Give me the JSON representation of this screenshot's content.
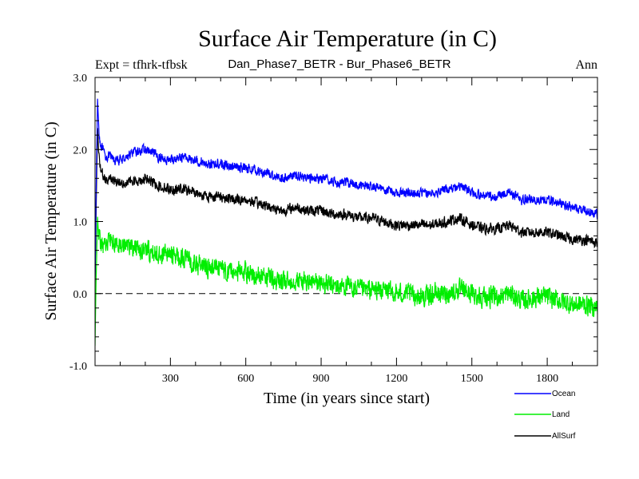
{
  "chart_data": {
    "type": "line",
    "title": "Surface Air Temperature (in C)",
    "subtitle_left": "Expt = tfhrk-tfbsk",
    "subtitle_center": "Dan_Phase7_BETR - Bur_Phase6_BETR",
    "subtitle_right": "Ann",
    "xlabel": "Time (in years since start)",
    "ylabel": "Surface Air Temperature (in C)",
    "xlim": [
      0,
      2000
    ],
    "ylim": [
      -1.0,
      3.0
    ],
    "xticks": [
      300,
      600,
      900,
      1200,
      1500,
      1800
    ],
    "xtick_labels": [
      "300",
      "600",
      "900",
      "1200",
      "1500",
      "1800"
    ],
    "yticks": [
      -1.0,
      0.0,
      1.0,
      2.0,
      3.0
    ],
    "ytick_labels": [
      "-1.0",
      "0.0",
      "1.0",
      "2.0",
      "3.0"
    ],
    "reference_line": 0.0,
    "legend_position": "bottom-right",
    "series": [
      {
        "name": "Ocean",
        "color": "#0000ff",
        "x": [
          0,
          5,
          10,
          15,
          20,
          30,
          40,
          60,
          80,
          100,
          150,
          200,
          250,
          300,
          350,
          400,
          450,
          500,
          550,
          600,
          650,
          700,
          750,
          800,
          850,
          900,
          950,
          1000,
          1050,
          1100,
          1150,
          1200,
          1250,
          1300,
          1350,
          1400,
          1450,
          1500,
          1550,
          1600,
          1650,
          1700,
          1750,
          1800,
          1850,
          1900,
          1950,
          2000
        ],
        "values": [
          0.2,
          1.6,
          2.7,
          2.3,
          2.1,
          2.0,
          1.9,
          1.9,
          1.85,
          1.85,
          1.95,
          2.0,
          1.9,
          1.85,
          1.9,
          1.85,
          1.8,
          1.8,
          1.75,
          1.75,
          1.7,
          1.65,
          1.6,
          1.65,
          1.6,
          1.6,
          1.55,
          1.55,
          1.5,
          1.5,
          1.45,
          1.4,
          1.4,
          1.4,
          1.4,
          1.45,
          1.5,
          1.4,
          1.35,
          1.35,
          1.4,
          1.3,
          1.3,
          1.3,
          1.25,
          1.2,
          1.15,
          1.1
        ]
      },
      {
        "name": "Land",
        "color": "#00ee00",
        "x": [
          0,
          5,
          10,
          15,
          20,
          30,
          40,
          60,
          80,
          100,
          150,
          200,
          250,
          300,
          350,
          400,
          450,
          500,
          550,
          600,
          650,
          700,
          750,
          800,
          850,
          900,
          950,
          1000,
          1050,
          1100,
          1150,
          1200,
          1250,
          1300,
          1350,
          1400,
          1450,
          1500,
          1550,
          1600,
          1650,
          1700,
          1750,
          1800,
          1850,
          1900,
          1950,
          2000
        ],
        "values": [
          -0.7,
          0.3,
          1.1,
          0.8,
          0.7,
          0.65,
          0.7,
          0.75,
          0.7,
          0.7,
          0.65,
          0.6,
          0.55,
          0.55,
          0.5,
          0.4,
          0.35,
          0.35,
          0.3,
          0.3,
          0.25,
          0.2,
          0.15,
          0.2,
          0.15,
          0.15,
          0.1,
          0.1,
          0.05,
          0.05,
          0.05,
          0.0,
          0.0,
          -0.05,
          0.0,
          0.0,
          0.05,
          0.0,
          -0.05,
          -0.05,
          0.0,
          -0.1,
          -0.05,
          -0.05,
          -0.1,
          -0.15,
          -0.15,
          -0.2
        ]
      },
      {
        "name": "AllSurf",
        "color": "#000000",
        "x": [
          0,
          5,
          10,
          15,
          20,
          30,
          40,
          60,
          80,
          100,
          150,
          200,
          250,
          300,
          350,
          400,
          450,
          500,
          550,
          600,
          650,
          700,
          750,
          800,
          850,
          900,
          950,
          1000,
          1050,
          1100,
          1150,
          1200,
          1250,
          1300,
          1350,
          1400,
          1450,
          1500,
          1550,
          1600,
          1650,
          1700,
          1750,
          1800,
          1850,
          1900,
          1950,
          2000
        ],
        "values": [
          0.1,
          1.3,
          2.3,
          1.9,
          1.75,
          1.65,
          1.6,
          1.6,
          1.55,
          1.55,
          1.55,
          1.6,
          1.5,
          1.45,
          1.45,
          1.4,
          1.35,
          1.35,
          1.3,
          1.3,
          1.25,
          1.2,
          1.15,
          1.2,
          1.15,
          1.15,
          1.1,
          1.1,
          1.05,
          1.05,
          1.0,
          0.95,
          0.95,
          0.95,
          0.95,
          1.0,
          1.05,
          0.95,
          0.9,
          0.9,
          0.95,
          0.85,
          0.85,
          0.85,
          0.8,
          0.75,
          0.75,
          0.7
        ]
      }
    ]
  }
}
